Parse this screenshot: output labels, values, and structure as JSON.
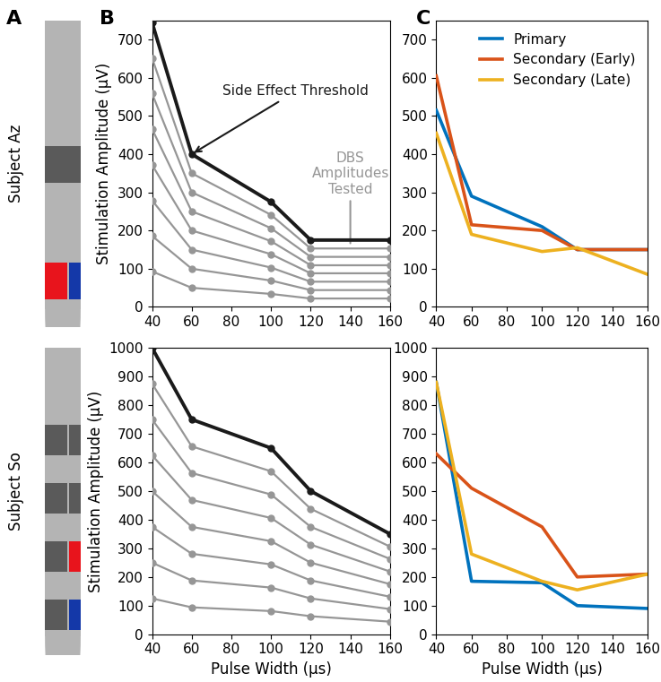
{
  "panel_labels": [
    "A",
    "B",
    "C"
  ],
  "row_labels": [
    "Subject Az",
    "Subject So"
  ],
  "chart_data": [
    {
      "type": "line",
      "y_label": "Stimulation Amplitude (µV)",
      "x": [
        40,
        60,
        100,
        120,
        160
      ],
      "xlim": [
        40,
        160
      ],
      "xticks": [
        40,
        60,
        80,
        100,
        120,
        140,
        160
      ],
      "ylim": [
        0,
        750
      ],
      "yticks": [
        0,
        100,
        200,
        300,
        400,
        500,
        600,
        700
      ],
      "series": [
        {
          "color": "#1a1a1a",
          "marker": "circle",
          "values": [
            745,
            400,
            275,
            175,
            175
          ]
        },
        {
          "color": "#969696",
          "marker": "circle",
          "values": [
            652,
            350,
            241,
            153,
            153
          ]
        },
        {
          "color": "#969696",
          "marker": "circle",
          "values": [
            559,
            300,
            206,
            131,
            131
          ]
        },
        {
          "color": "#969696",
          "marker": "circle",
          "values": [
            466,
            250,
            172,
            109,
            109
          ]
        },
        {
          "color": "#969696",
          "marker": "circle",
          "values": [
            372,
            200,
            138,
            88,
            88
          ]
        },
        {
          "color": "#969696",
          "marker": "circle",
          "values": [
            279,
            150,
            103,
            66,
            66
          ]
        },
        {
          "color": "#969696",
          "marker": "circle",
          "values": [
            186,
            100,
            69,
            44,
            44
          ]
        },
        {
          "color": "#969696",
          "marker": "circle",
          "values": [
            93,
            50,
            34,
            22,
            22
          ]
        }
      ],
      "annotations": [
        {
          "text": "Side Effect Threshold",
          "x": 60,
          "y": 400,
          "color": "#1a1a1a"
        },
        {
          "text": "DBS\nAmplitudes\nTested",
          "x": 140,
          "y": 160,
          "color": "#969696"
        }
      ]
    },
    {
      "type": "line",
      "x": [
        40,
        60,
        100,
        120,
        160
      ],
      "xlim": [
        40,
        160
      ],
      "xticks": [
        40,
        60,
        80,
        100,
        120,
        140,
        160
      ],
      "ylim": [
        0,
        750
      ],
      "yticks": [
        0,
        100,
        200,
        300,
        400,
        500,
        600,
        700
      ],
      "legend": "upper right",
      "series": [
        {
          "name": "Primary",
          "color": "#0072bd",
          "values": [
            515,
            290,
            210,
            150,
            150
          ]
        },
        {
          "name": "Secondary (Early)",
          "color": "#d95319",
          "values": [
            605,
            215,
            200,
            150,
            150
          ]
        },
        {
          "name": "Secondary (Late)",
          "color": "#edb120",
          "values": [
            455,
            190,
            145,
            155,
            85
          ]
        }
      ]
    },
    {
      "type": "line",
      "y_label": "Stimulation Amplitude (µV)",
      "x_label": "Pulse Width (µs)",
      "x": [
        40,
        60,
        100,
        120,
        160
      ],
      "xlim": [
        40,
        160
      ],
      "xticks": [
        40,
        60,
        80,
        100,
        120,
        140,
        160
      ],
      "ylim": [
        0,
        1000
      ],
      "yticks": [
        0,
        100,
        200,
        300,
        400,
        500,
        600,
        700,
        800,
        900,
        1000
      ],
      "series": [
        {
          "color": "#1a1a1a",
          "marker": "circle",
          "values": [
            1000,
            750,
            650,
            500,
            350
          ]
        },
        {
          "color": "#969696",
          "marker": "circle",
          "values": [
            875,
            656,
            569,
            438,
            306
          ]
        },
        {
          "color": "#969696",
          "marker": "circle",
          "values": [
            750,
            563,
            488,
            375,
            263
          ]
        },
        {
          "color": "#969696",
          "marker": "circle",
          "values": [
            625,
            469,
            406,
            313,
            219
          ]
        },
        {
          "color": "#969696",
          "marker": "circle",
          "values": [
            500,
            375,
            325,
            250,
            175
          ]
        },
        {
          "color": "#969696",
          "marker": "circle",
          "values": [
            375,
            281,
            244,
            188,
            131
          ]
        },
        {
          "color": "#969696",
          "marker": "circle",
          "values": [
            250,
            188,
            163,
            125,
            88
          ]
        },
        {
          "color": "#969696",
          "marker": "circle",
          "values": [
            125,
            94,
            81,
            63,
            44
          ]
        }
      ]
    },
    {
      "type": "line",
      "x_label": "Pulse Width (µs)",
      "x": [
        40,
        60,
        100,
        120,
        160
      ],
      "xlim": [
        40,
        160
      ],
      "xticks": [
        40,
        60,
        80,
        100,
        120,
        140,
        160
      ],
      "ylim": [
        0,
        1000
      ],
      "yticks": [
        0,
        100,
        200,
        300,
        400,
        500,
        600,
        700,
        800,
        900,
        1000
      ],
      "series": [
        {
          "color": "#0072bd",
          "values": [
            880,
            185,
            180,
            100,
            90
          ]
        },
        {
          "color": "#d95319",
          "values": [
            630,
            510,
            375,
            200,
            210
          ]
        },
        {
          "color": "#edb120",
          "values": [
            880,
            280,
            185,
            155,
            210
          ]
        }
      ]
    }
  ]
}
